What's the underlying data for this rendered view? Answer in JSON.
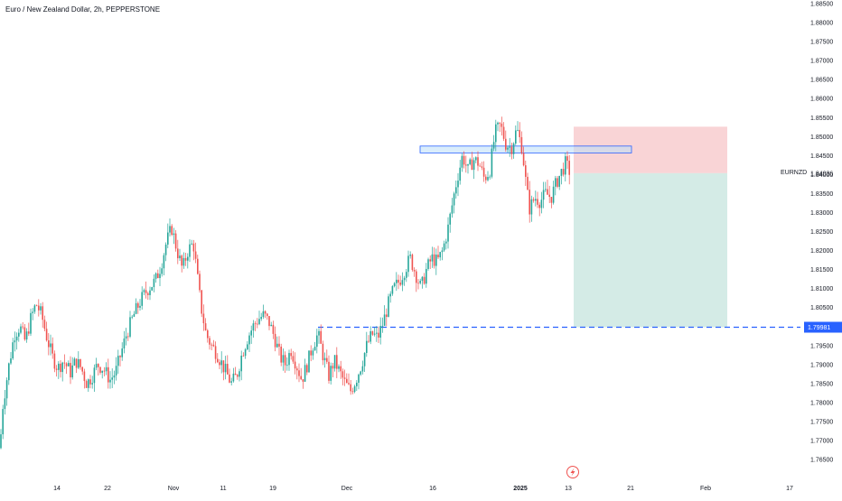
{
  "chart_title": "Euro / New Zealand Dollar, 2h, PEPPERSTONE",
  "symbol": "EURNZD",
  "colors": {
    "up": "#26a69a",
    "down": "#ef5350",
    "stop_zone": "#f7c9cc",
    "target_zone": "#cfe9e3",
    "resistance_box": "#bcdff7",
    "resistance_border": "#2962ff",
    "level_line": "#2962ff",
    "axis_text": "#131722"
  },
  "icons": {
    "replay": "lightning-icon"
  },
  "chart_data": {
    "type": "candlestick",
    "title": "Euro / New Zealand Dollar, 2h, PEPPERSTONE",
    "symbol": "EURNZD",
    "y_ticks": [
      "1.88500",
      "1.88000",
      "1.87500",
      "1.87000",
      "1.86500",
      "1.86000",
      "1.85500",
      "1.85000",
      "1.84500",
      "1.84000",
      "1.83500",
      "1.83000",
      "1.82500",
      "1.82000",
      "1.81500",
      "1.81000",
      "1.80500",
      "1.80000",
      "1.79500",
      "1.79000",
      "1.78500",
      "1.78000",
      "1.77500",
      "1.77000",
      "1.76500"
    ],
    "x_ticks": [
      "14",
      "22",
      "Nov",
      "11",
      "19",
      "Dec",
      "16",
      "2025",
      "13",
      "21",
      "Feb",
      "17"
    ],
    "ylim": [
      1.765,
      1.885
    ],
    "current_price": "1.84036",
    "horizontal_level": "1.79981",
    "path_anchors": [
      [
        0,
        1.768
      ],
      [
        3,
        1.779
      ],
      [
        10,
        1.79
      ],
      [
        16,
        1.798
      ],
      [
        22,
        1.8
      ],
      [
        28,
        1.796
      ],
      [
        34,
        1.802
      ],
      [
        40,
        1.806
      ],
      [
        46,
        1.803
      ],
      [
        52,
        1.797
      ],
      [
        58,
        1.792
      ],
      [
        64,
        1.789
      ],
      [
        70,
        1.791
      ],
      [
        78,
        1.788
      ],
      [
        84,
        1.791
      ],
      [
        90,
        1.789
      ],
      [
        96,
        1.785
      ],
      [
        102,
        1.787
      ],
      [
        108,
        1.79
      ],
      [
        114,
        1.789
      ],
      [
        122,
        1.786
      ],
      [
        128,
        1.788
      ],
      [
        134,
        1.793
      ],
      [
        140,
        1.798
      ],
      [
        148,
        1.803
      ],
      [
        156,
        1.807
      ],
      [
        164,
        1.81
      ],
      [
        172,
        1.812
      ],
      [
        178,
        1.816
      ],
      [
        184,
        1.822
      ],
      [
        190,
        1.826
      ],
      [
        196,
        1.82
      ],
      [
        202,
        1.815
      ],
      [
        208,
        1.82
      ],
      [
        214,
        1.822
      ],
      [
        218,
        1.814
      ],
      [
        222,
        1.806
      ],
      [
        228,
        1.798
      ],
      [
        234,
        1.795
      ],
      [
        240,
        1.793
      ],
      [
        246,
        1.79
      ],
      [
        252,
        1.787
      ],
      [
        256,
        1.785
      ],
      [
        262,
        1.787
      ],
      [
        268,
        1.793
      ],
      [
        274,
        1.797
      ],
      [
        280,
        1.8
      ],
      [
        286,
        1.802
      ],
      [
        292,
        1.803
      ],
      [
        298,
        1.801
      ],
      [
        304,
        1.797
      ],
      [
        310,
        1.792
      ],
      [
        316,
        1.79
      ],
      [
        322,
        1.794
      ],
      [
        328,
        1.79
      ],
      [
        334,
        1.786
      ],
      [
        340,
        1.79
      ],
      [
        346,
        1.795
      ],
      [
        352,
        1.798
      ],
      [
        358,
        1.792
      ],
      [
        364,
        1.787
      ],
      [
        370,
        1.791
      ],
      [
        376,
        1.788
      ],
      [
        382,
        1.785
      ],
      [
        388,
        1.783
      ],
      [
        394,
        1.786
      ],
      [
        400,
        1.79
      ],
      [
        406,
        1.795
      ],
      [
        412,
        1.798
      ],
      [
        418,
        1.797
      ],
      [
        424,
        1.801
      ],
      [
        430,
        1.806
      ],
      [
        436,
        1.81
      ],
      [
        442,
        1.812
      ],
      [
        448,
        1.815
      ],
      [
        454,
        1.818
      ],
      [
        460,
        1.814
      ],
      [
        466,
        1.81
      ],
      [
        472,
        1.815
      ],
      [
        478,
        1.818
      ],
      [
        484,
        1.817
      ],
      [
        490,
        1.82
      ],
      [
        496,
        1.826
      ],
      [
        502,
        1.834
      ],
      [
        506,
        1.839
      ],
      [
        512,
        1.845
      ],
      [
        518,
        1.841
      ],
      [
        524,
        1.844
      ],
      [
        530,
        1.843
      ],
      [
        536,
        1.839
      ],
      [
        542,
        1.841
      ],
      [
        548,
        1.851
      ],
      [
        554,
        1.853
      ],
      [
        560,
        1.848
      ],
      [
        566,
        1.847
      ],
      [
        572,
        1.852
      ],
      [
        578,
        1.847
      ],
      [
        582,
        1.838
      ],
      [
        586,
        1.831
      ],
      [
        592,
        1.834
      ],
      [
        598,
        1.833
      ],
      [
        604,
        1.835
      ],
      [
        610,
        1.834
      ],
      [
        616,
        1.838
      ],
      [
        622,
        1.841
      ],
      [
        626,
        1.843
      ],
      [
        632,
        1.84
      ]
    ],
    "position": {
      "entry": 1.84036,
      "stop": 1.8526,
      "target": 1.79981,
      "start_tick": "13",
      "end_tick": "Feb"
    },
    "resistance_zone": {
      "high": 1.8475,
      "low": 1.8457
    }
  }
}
